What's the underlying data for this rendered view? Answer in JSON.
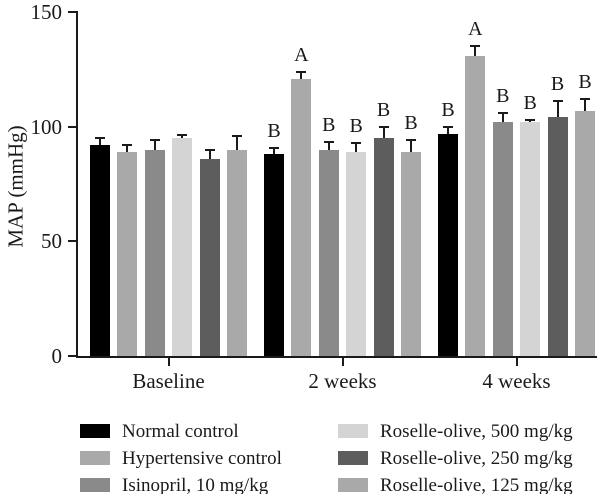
{
  "figure": {
    "background": "#ffffff",
    "text_color": "#1a1a1a"
  },
  "chart_data": {
    "type": "bar",
    "title": "",
    "xlabel": "",
    "ylabel": "MAP (mmHg)",
    "ylim": [
      0,
      150
    ],
    "yticks": [
      0,
      50,
      100,
      150
    ],
    "grid": false,
    "legend_position": "bottom",
    "error_bars": "upper_only",
    "categories": [
      "Baseline",
      "2 weeks",
      "4 weeks"
    ],
    "series": [
      {
        "name": "Normal control",
        "color": "#000000",
        "values": [
          92,
          88,
          97
        ],
        "errors": [
          3,
          2.5,
          3
        ],
        "letters": [
          "",
          "B",
          "B"
        ]
      },
      {
        "name": "Hypertensive control",
        "color": "#a9a9a9",
        "values": [
          89,
          121,
          131
        ],
        "errors": [
          3,
          3,
          4
        ],
        "letters": [
          "",
          "A",
          "A"
        ]
      },
      {
        "name": "Isinopril, 10 mg/kg",
        "color": "#8a8a8a",
        "values": [
          90,
          90,
          102
        ],
        "errors": [
          4,
          3.5,
          4
        ],
        "letters": [
          "",
          "B",
          "B"
        ]
      },
      {
        "name": "Roselle-olive, 500 mg/kg",
        "color": "#d4d4d4",
        "values": [
          95,
          89,
          102
        ],
        "errors": [
          1.5,
          4,
          1
        ],
        "letters": [
          "",
          "B",
          "B"
        ]
      },
      {
        "name": "Roselle-olive, 250 mg/kg",
        "color": "#5d5d5d",
        "values": [
          86,
          95,
          104
        ],
        "errors": [
          4,
          5,
          7
        ],
        "letters": [
          "",
          "B",
          "B"
        ]
      },
      {
        "name": "Roselle-olive, 125 mg/kg",
        "color": "#a9a9a9",
        "values": [
          90,
          89,
          107
        ],
        "errors": [
          6,
          5,
          5
        ],
        "letters": [
          "",
          "B",
          "B"
        ]
      }
    ]
  }
}
